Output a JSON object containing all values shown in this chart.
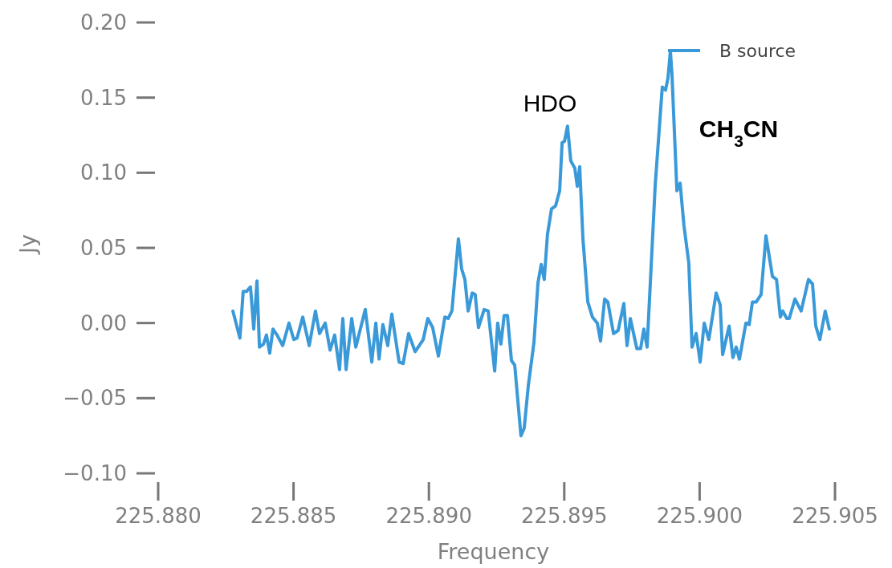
{
  "chart_data": {
    "type": "line",
    "xlabel": "Frequency",
    "ylabel": "Jy",
    "legend": "top right",
    "marker": "none",
    "line_style": "solid",
    "xlim": [
      225.88,
      225.905
    ],
    "ylim": [
      -0.1,
      0.2
    ],
    "xticks": [
      {
        "value": 225.88,
        "label": "225.880"
      },
      {
        "value": 225.885,
        "label": "225.885"
      },
      {
        "value": 225.89,
        "label": "225.890"
      },
      {
        "value": 225.895,
        "label": "225.895"
      },
      {
        "value": 225.9,
        "label": "225.900"
      },
      {
        "value": 225.905,
        "label": "225.905"
      }
    ],
    "yticks": [
      {
        "value": -0.1,
        "label": "−0.10"
      },
      {
        "value": -0.05,
        "label": "−0.05"
      },
      {
        "value": 0,
        "label": "0.00"
      },
      {
        "value": 0.05,
        "label": "0.05"
      },
      {
        "value": 0.1,
        "label": "0.10"
      },
      {
        "value": 0.15,
        "label": "0.15"
      },
      {
        "value": 0.2,
        "label": "0.20"
      }
    ],
    "annotations": [
      "HDO",
      "CH$_{3}$CN"
    ],
    "series": [
      {
        "name": "B source",
        "color": "#3a9ad9",
        "x": [
          225.88276,
          225.88302,
          225.88314,
          225.88326,
          225.88341,
          225.88353,
          225.88365,
          225.88374,
          225.88389,
          225.884,
          225.88412,
          225.88424,
          225.88439,
          225.8846,
          225.88483,
          225.88501,
          225.88513,
          225.88534,
          225.88558,
          225.88581,
          225.88596,
          225.88617,
          225.88635,
          225.88652,
          225.8867,
          225.88682,
          225.88694,
          225.88715,
          225.8873,
          225.88765,
          225.88789,
          225.88804,
          225.88816,
          225.8883,
          225.88848,
          225.88863,
          225.8889,
          225.88905,
          225.88925,
          225.88949,
          225.88979,
          225.88996,
          225.89014,
          225.89035,
          225.89059,
          225.89071,
          225.89085,
          225.89109,
          225.89121,
          225.89133,
          225.89145,
          225.8916,
          225.89171,
          225.89183,
          225.89204,
          225.89219,
          225.89243,
          225.89254,
          225.89266,
          225.89278,
          225.8929,
          225.89305,
          225.89317,
          225.8934,
          225.89352,
          225.89367,
          225.89388,
          225.89403,
          225.89415,
          225.89426,
          225.89438,
          225.89453,
          225.89468,
          225.89483,
          225.89492,
          225.89501,
          225.89512,
          225.89524,
          225.89539,
          225.89548,
          225.89557,
          225.89569,
          225.89587,
          225.89604,
          225.89622,
          225.89634,
          225.89649,
          225.89661,
          225.89682,
          225.89699,
          225.8972,
          225.89732,
          225.89744,
          225.89768,
          225.89782,
          225.89794,
          225.89806,
          225.89836,
          225.89862,
          225.89874,
          225.89883,
          225.89892,
          225.89898,
          225.89916,
          225.89928,
          225.89942,
          225.8996,
          225.89972,
          225.89987,
          225.90002,
          225.90017,
          225.90034,
          225.90061,
          225.90076,
          225.90085,
          225.90109,
          225.90123,
          225.90135,
          225.90147,
          225.90171,
          225.90183,
          225.90195,
          225.90209,
          225.90227,
          225.90245,
          225.90269,
          225.90284,
          225.90298,
          225.90307,
          225.90322,
          225.90331,
          225.90352,
          225.90375,
          225.90402,
          225.90417,
          225.90429,
          225.90444,
          225.90464,
          225.90479
        ],
        "values": [
          0.008,
          -0.01,
          0.021,
          0.021,
          0.024,
          -0.004,
          0.028,
          -0.016,
          -0.014,
          -0.008,
          -0.02,
          -0.004,
          -0.008,
          -0.015,
          0,
          -0.011,
          -0.01,
          0.004,
          -0.015,
          0.008,
          -0.007,
          0,
          -0.018,
          -0.008,
          -0.031,
          0.003,
          -0.031,
          0.003,
          -0.016,
          0.009,
          -0.026,
          0,
          -0.024,
          -0.001,
          -0.015,
          0.006,
          -0.026,
          -0.027,
          -0.007,
          -0.019,
          -0.011,
          0.003,
          -0.003,
          -0.022,
          0.004,
          0.003,
          0.008,
          0.056,
          0.036,
          0.029,
          0.008,
          0.02,
          0.019,
          -0.003,
          0.009,
          0.008,
          -0.032,
          0,
          -0.014,
          0.005,
          0.005,
          -0.025,
          -0.028,
          -0.075,
          -0.07,
          -0.042,
          -0.013,
          0.027,
          0.039,
          0.029,
          0.059,
          0.076,
          0.078,
          0.088,
          0.12,
          0.121,
          0.131,
          0.108,
          0.103,
          0.091,
          0.104,
          0.056,
          0.014,
          0.004,
          0,
          -0.012,
          0.016,
          0.014,
          -0.007,
          -0.005,
          0.013,
          -0.015,
          0.003,
          -0.017,
          -0.017,
          -0.004,
          -0.016,
          0.092,
          0.157,
          0.155,
          0.163,
          0.181,
          0.165,
          0.088,
          0.093,
          0.065,
          0.04,
          -0.016,
          -0.007,
          -0.026,
          0,
          -0.011,
          0.02,
          0.012,
          -0.021,
          -0.002,
          -0.023,
          -0.016,
          -0.024,
          0,
          -0.001,
          0.014,
          0.014,
          0.019,
          0.058,
          0.031,
          0.029,
          0.004,
          0.008,
          0.003,
          0.003,
          0.016,
          0.008,
          0.029,
          0.026,
          -0.002,
          -0.011,
          0.008,
          -0.004
        ]
      }
    ]
  }
}
